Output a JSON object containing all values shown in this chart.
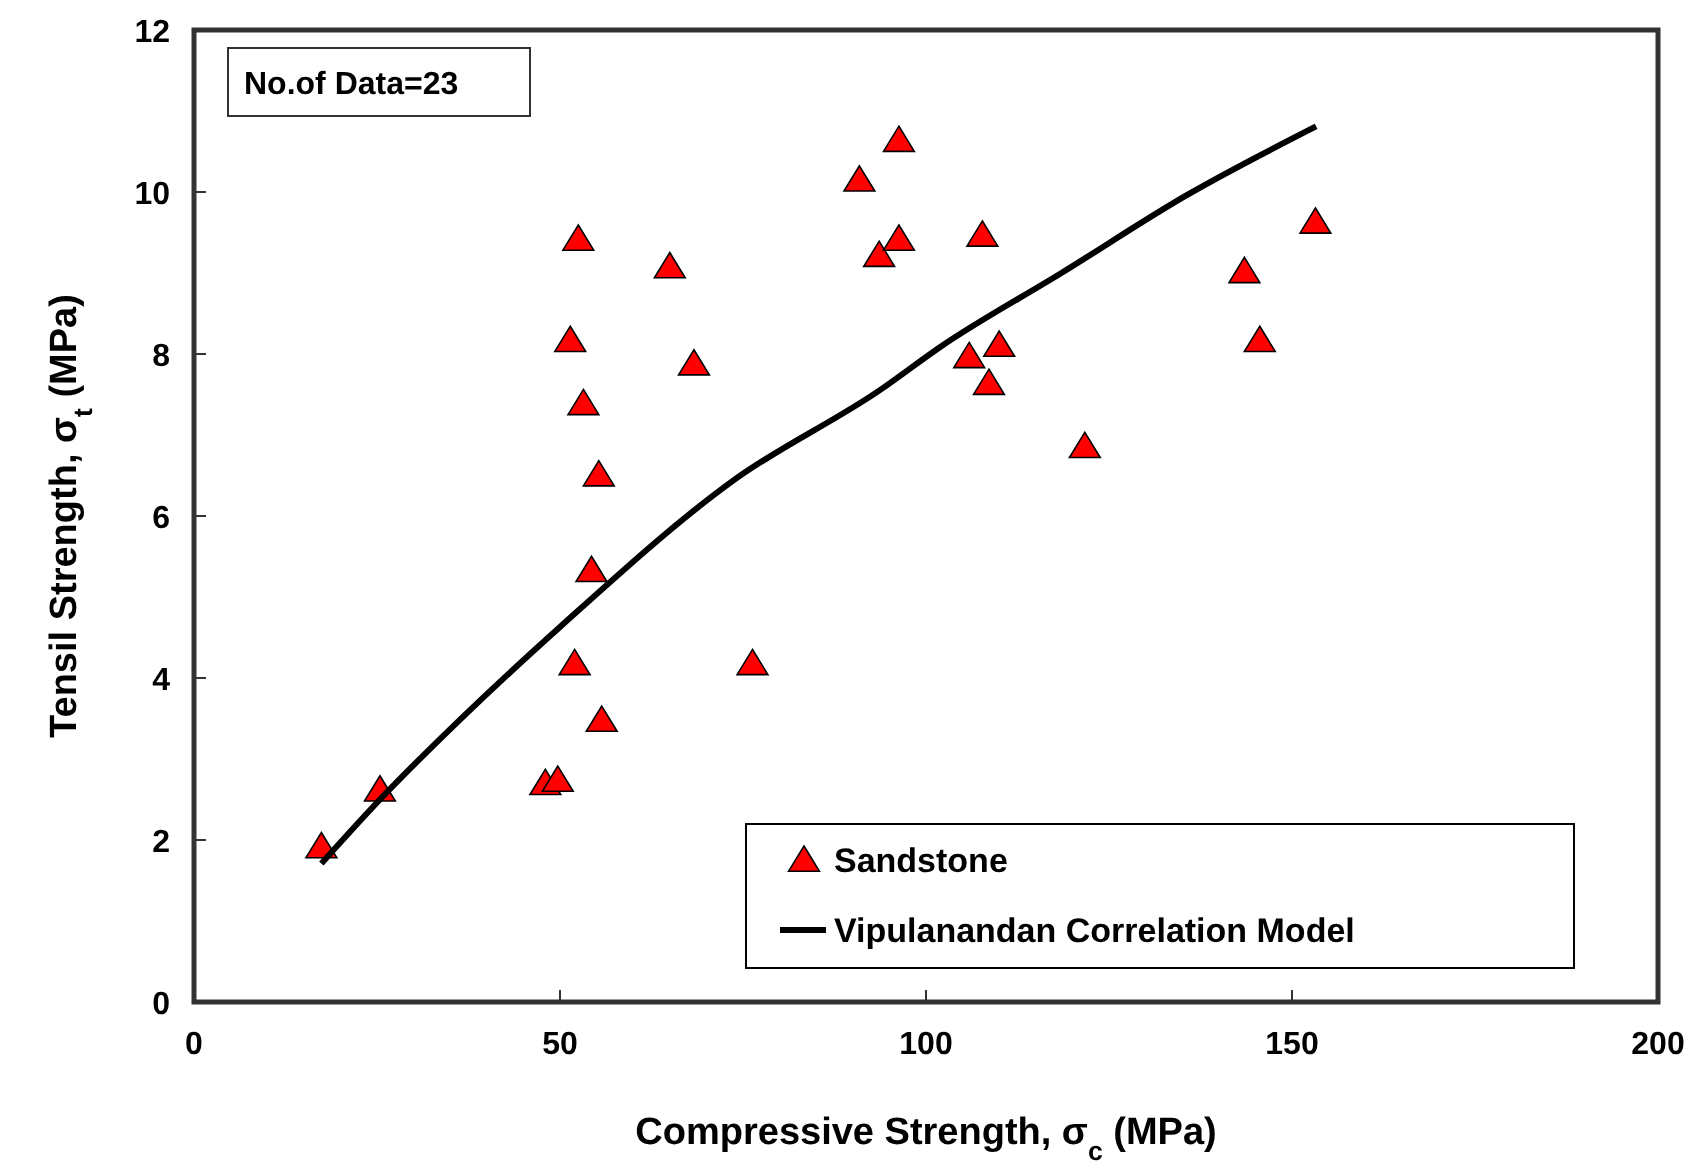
{
  "chart_data": {
    "type": "scatter",
    "xlabel": "Compressive Strength, σ$_{c}$ (MPa)",
    "ylabel": "Tensil Strength, σ$_{t}$ (MPa)",
    "annotations": [
      "No.of Data=23"
    ],
    "xlim": [
      0,
      200
    ],
    "xticks": [
      0,
      50,
      100,
      150,
      200
    ],
    "ylim": [
      0,
      12
    ],
    "yticks": [
      0,
      2,
      4,
      6,
      8,
      10,
      12
    ],
    "grid": false,
    "legend": "bottom right",
    "series": [
      {
        "name": "Sandstone",
        "marker": "triangle",
        "color": "#ff0000",
        "x": [
          17.4,
          25.4,
          48.0,
          49.7,
          52.0,
          55.7,
          54.3,
          55.3,
          53.2,
          51.4,
          52.5,
          65.0,
          68.3,
          76.3,
          90.9,
          96.3,
          93.6,
          96.3,
          107.7,
          105.9,
          110.0,
          108.6,
          121.7,
          143.5,
          145.6,
          153.2
        ],
        "values": [
          1.92,
          2.62,
          2.7,
          2.74,
          4.18,
          3.48,
          5.33,
          6.51,
          7.39,
          8.17,
          9.42,
          9.08,
          7.88,
          4.18,
          10.15,
          10.64,
          9.22,
          9.42,
          9.47,
          7.97,
          8.11,
          7.64,
          6.86,
          9.02,
          8.17,
          9.63
        ]
      },
      {
        "name": "Vipulanandan Correlation Model",
        "type": "line",
        "marker": "none",
        "line_style": "solid",
        "color": "#000000",
        "x": [
          17.4,
          25.4,
          37.2,
          50,
          73.7,
          93.8,
          102,
          118.5,
          135.8,
          153.3
        ],
        "values": [
          1.71,
          2.5,
          3.56,
          4.63,
          6.44,
          7.56,
          8.09,
          9.0,
          9.97,
          10.81
        ]
      }
    ]
  }
}
